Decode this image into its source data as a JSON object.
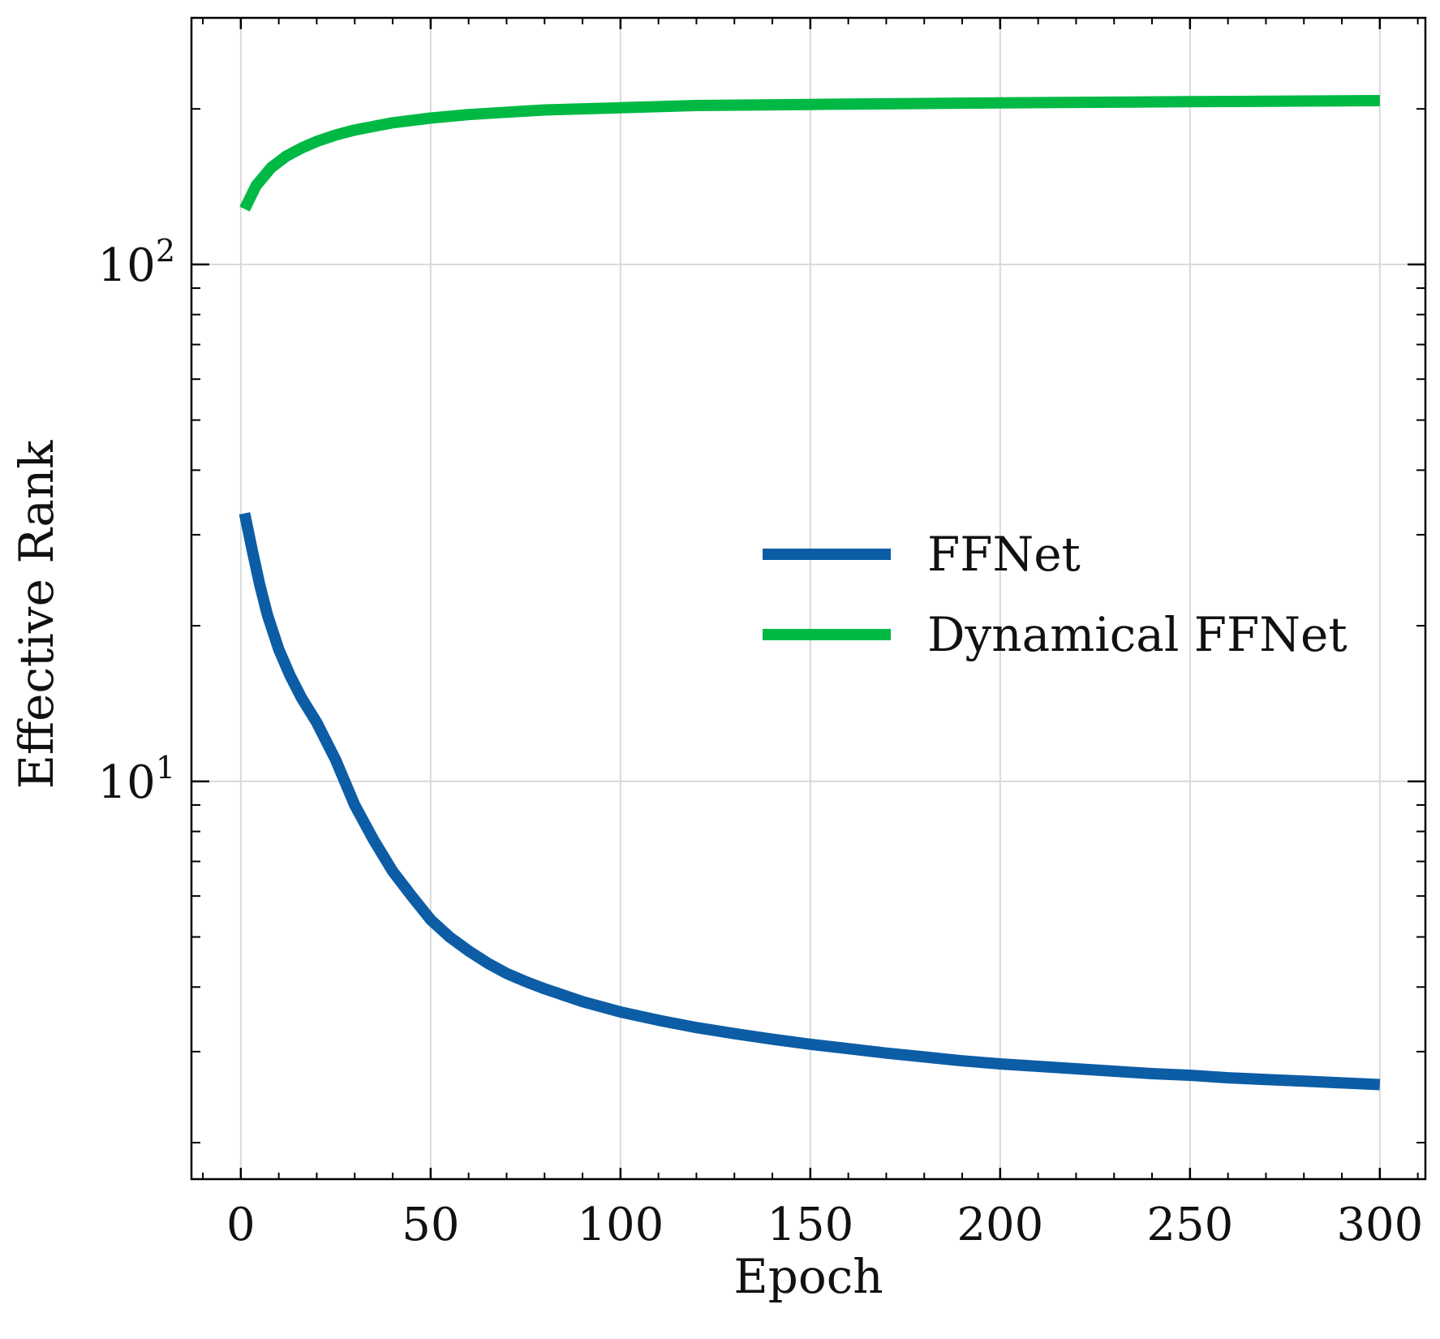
{
  "chart_data": {
    "type": "line",
    "title": "",
    "xlabel": "Epoch",
    "ylabel": "Effective Rank",
    "xlim": [
      -13,
      312
    ],
    "ylim": [
      1.7,
      300
    ],
    "yscale": "log",
    "grid": true,
    "legend_position": "center-right",
    "x_ticks": [
      {
        "value": 0,
        "label": "0"
      },
      {
        "value": 50,
        "label": "50"
      },
      {
        "value": 100,
        "label": "100"
      },
      {
        "value": 150,
        "label": "150"
      },
      {
        "value": 200,
        "label": "200"
      },
      {
        "value": 250,
        "label": "250"
      },
      {
        "value": 300,
        "label": "300"
      }
    ],
    "y_ticks": [
      {
        "value": 10,
        "base": "10",
        "exp": "1"
      },
      {
        "value": 100,
        "base": "10",
        "exp": "2"
      }
    ],
    "series": [
      {
        "name": "FFNet",
        "color": "#0C5DA5",
        "x": [
          1,
          3,
          5,
          7,
          10,
          13,
          16,
          20,
          25,
          30,
          35,
          40,
          45,
          50,
          55,
          60,
          65,
          70,
          75,
          80,
          90,
          100,
          110,
          120,
          130,
          140,
          150,
          160,
          170,
          180,
          190,
          200,
          210,
          220,
          230,
          240,
          250,
          260,
          270,
          280,
          290,
          300
        ],
        "values": [
          33,
          28,
          24,
          21,
          18,
          16,
          14.5,
          13,
          11,
          9,
          7.7,
          6.7,
          6.0,
          5.4,
          5.0,
          4.7,
          4.45,
          4.25,
          4.1,
          3.97,
          3.75,
          3.58,
          3.45,
          3.34,
          3.25,
          3.17,
          3.1,
          3.04,
          2.98,
          2.93,
          2.88,
          2.84,
          2.81,
          2.78,
          2.75,
          2.72,
          2.7,
          2.67,
          2.65,
          2.63,
          2.61,
          2.59
        ]
      },
      {
        "name": "Dynamical FFNet",
        "color": "#00B945",
        "x": [
          1,
          4,
          8,
          12,
          16,
          20,
          25,
          30,
          40,
          50,
          60,
          70,
          80,
          100,
          120,
          150,
          200,
          250,
          300
        ],
        "values": [
          128,
          142,
          154,
          162,
          168,
          173,
          178,
          182,
          188,
          192,
          195,
          197,
          199,
          201,
          203,
          204,
          205.5,
          206.5,
          207.5
        ]
      }
    ]
  }
}
